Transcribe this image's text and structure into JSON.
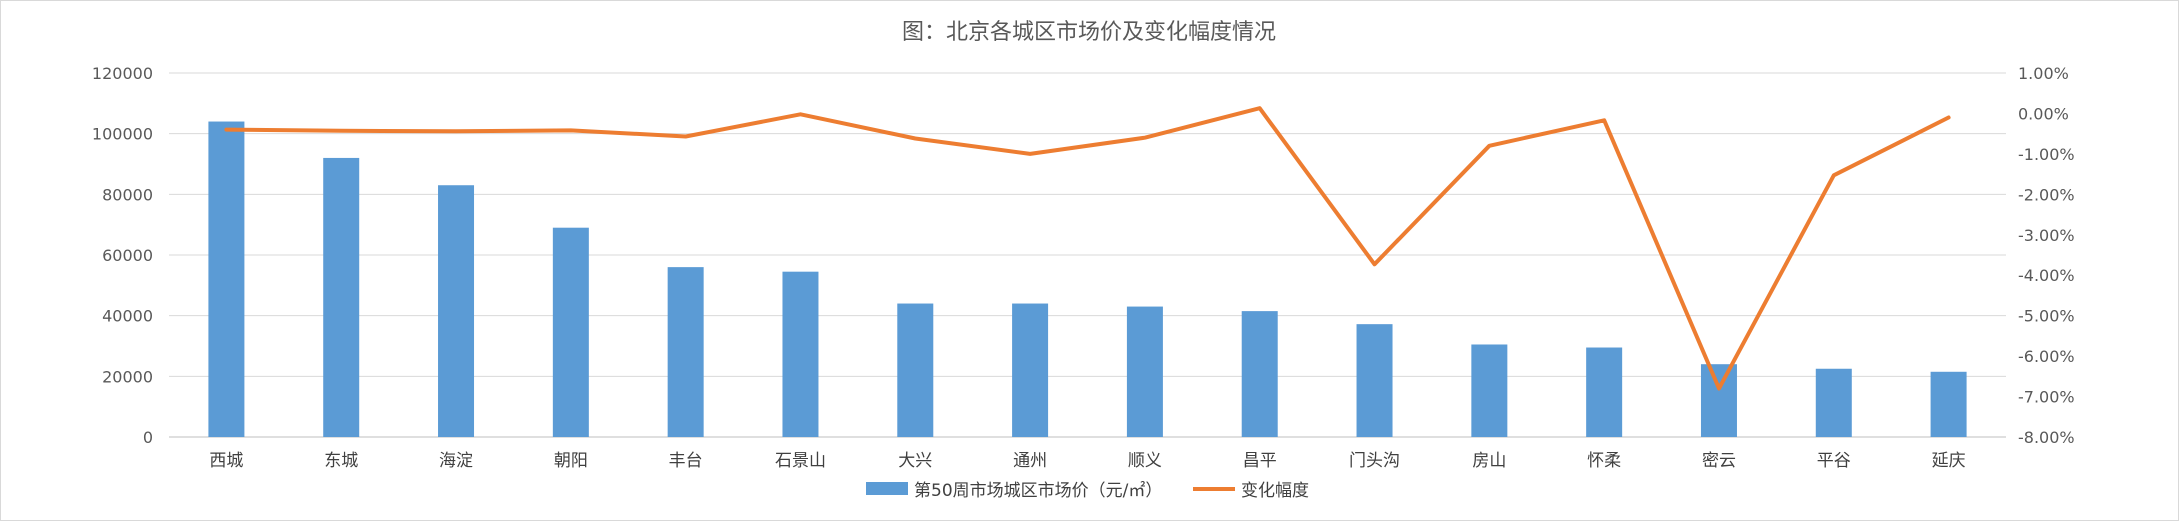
{
  "chart_data": {
    "type": "bar+line",
    "title": "图：北京各城区市场价及变化幅度情况",
    "categories": [
      "西城",
      "东城",
      "海淀",
      "朝阳",
      "丰台",
      "石景山",
      "大兴",
      "通州",
      "顺义",
      "昌平",
      "门头沟",
      "房山",
      "怀柔",
      "密云",
      "平谷",
      "延庆"
    ],
    "series": [
      {
        "name": "第50周市场城区市场价（元/㎡）",
        "type": "bar",
        "axis": "left",
        "color": "#5b9bd5",
        "values": [
          104000,
          92000,
          83000,
          69000,
          56000,
          54500,
          44000,
          44000,
          43000,
          41500,
          37200,
          30500,
          29500,
          24000,
          22500,
          21500
        ]
      },
      {
        "name": "变化幅度",
        "type": "line",
        "axis": "right",
        "unit": "%",
        "color": "#ed7d31",
        "values": [
          -0.4,
          -0.43,
          -0.44,
          -0.42,
          -0.57,
          -0.02,
          -0.62,
          -1.0,
          -0.6,
          0.13,
          -3.73,
          -0.8,
          -0.17,
          -6.8,
          -1.53,
          -0.1
        ]
      }
    ],
    "y_left": {
      "range": [
        0,
        120000
      ],
      "ticks": [
        0,
        20000,
        40000,
        60000,
        80000,
        100000,
        120000
      ],
      "tick_labels": [
        "0",
        "20000",
        "40000",
        "60000",
        "80000",
        "100000",
        "120000"
      ]
    },
    "y_right": {
      "range": [
        -8,
        1
      ],
      "ticks": [
        1,
        0,
        -1,
        -2,
        -3,
        -4,
        -5,
        -6,
        -7,
        -8
      ],
      "tick_labels": [
        "1.00%",
        "0.00%",
        "-1.00%",
        "-2.00%",
        "-3.00%",
        "-4.00%",
        "-5.00%",
        "-6.00%",
        "-7.00%",
        "-8.00%"
      ]
    },
    "grid": true,
    "legend_position": "bottom"
  }
}
